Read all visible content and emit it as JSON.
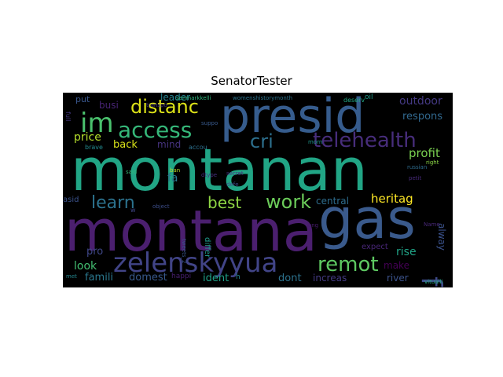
{
  "title": "SenatorTester",
  "words": [
    {
      "text": "montanan",
      "color": "#21a585"
    },
    {
      "text": "montana",
      "color": "#4b1f6f"
    },
    {
      "text": "presid",
      "color": "#365c8d"
    },
    {
      "text": "gas",
      "color": "#3a5a8c"
    },
    {
      "text": "zelenskyyua",
      "color": "#414487"
    },
    {
      "text": "farmer",
      "color": "#3e4a89"
    },
    {
      "text": "access",
      "color": "#35b779"
    },
    {
      "text": "im",
      "color": "#4ac16d"
    },
    {
      "text": "distanc",
      "color": "#dde318"
    },
    {
      "text": "telehealth",
      "color": "#472d7b"
    },
    {
      "text": "cri",
      "color": "#2d708e"
    },
    {
      "text": "remot",
      "color": "#5ec962"
    },
    {
      "text": "learn",
      "color": "#2c728e"
    },
    {
      "text": "best",
      "color": "#8fd744"
    },
    {
      "text": "work",
      "color": "#6ccd5a"
    },
    {
      "text": "outdoor",
      "color": "#443983"
    },
    {
      "text": "respons",
      "color": "#31688e"
    },
    {
      "text": "profit",
      "color": "#7ad151"
    },
    {
      "text": "heritag",
      "color": "#fde725"
    },
    {
      "text": "alway",
      "color": "#3b528b"
    },
    {
      "text": "busi",
      "color": "#482475"
    },
    {
      "text": "price",
      "color": "#b5de2b"
    },
    {
      "text": "back",
      "color": "#d8e219"
    },
    {
      "text": "mind",
      "color": "#46337f"
    },
    {
      "text": "fa",
      "color": "#2a788e"
    },
    {
      "text": "central",
      "color": "#2e6d8e"
    },
    {
      "text": "put",
      "color": "#39568c"
    },
    {
      "text": "leader",
      "color": "#26828e"
    },
    {
      "text": "look",
      "color": "#43bf71"
    },
    {
      "text": "pro",
      "color": "#3f4788"
    },
    {
      "text": "rise",
      "color": "#20a386"
    },
    {
      "text": "make",
      "color": "#440154"
    },
    {
      "text": "famili",
      "color": "#2a788e"
    },
    {
      "text": "domest",
      "color": "#38598c"
    },
    {
      "text": "happi",
      "color": "#481f70"
    },
    {
      "text": "ident",
      "color": "#1fa188"
    },
    {
      "text": "dont",
      "color": "#2c728e"
    },
    {
      "text": "increas",
      "color": "#443a83"
    },
    {
      "text": "river",
      "color": "#3b528b"
    },
    {
      "text": "differ",
      "color": "#1f9a8a"
    },
    {
      "text": "asid",
      "color": "#3b528b"
    },
    {
      "text": "expect",
      "color": "#482677"
    },
    {
      "text": "accou",
      "color": "#2d708e"
    },
    {
      "text": "ban",
      "color": "#b8de29"
    },
    {
      "text": "said",
      "color": "#35b779"
    },
    {
      "text": "secret",
      "color": "#472c7a"
    },
    {
      "text": "defe",
      "color": "#3e4989"
    },
    {
      "text": "long",
      "color": "#481c6e"
    },
    {
      "text": "deserv",
      "color": "#22a884"
    },
    {
      "text": "oil",
      "color": "#1e9c89"
    },
    {
      "text": "russian",
      "color": "#2f6c8e"
    },
    {
      "text": "petit",
      "color": "#472a7a"
    },
    {
      "text": "right",
      "color": "#8bd646"
    },
    {
      "text": "morn",
      "color": "#1f968b"
    },
    {
      "text": "dtype",
      "color": "#46307e"
    },
    {
      "text": "suppo",
      "color": "#38598c"
    },
    {
      "text": "brave",
      "color": "#23898e"
    },
    {
      "text": "transpo",
      "color": "#453781"
    },
    {
      "text": "senmarkkelli",
      "color": "#2fb47c"
    },
    {
      "text": "womenshistorymonth",
      "color": "#2b748e"
    },
    {
      "text": "tweets_2",
      "color": "#3a548c"
    },
    {
      "text": "object",
      "color": "#3d4e8a"
    },
    {
      "text": "Name",
      "color": "#482878"
    },
    {
      "text": "vitualli",
      "color": "#27ad81"
    },
    {
      "text": "met",
      "color": "#24868e"
    },
    {
      "text": "w",
      "color": "#3f4788"
    },
    {
      "text": "h",
      "color": "#25848e"
    },
    {
      "text": "full",
      "color": "#453882"
    }
  ]
}
